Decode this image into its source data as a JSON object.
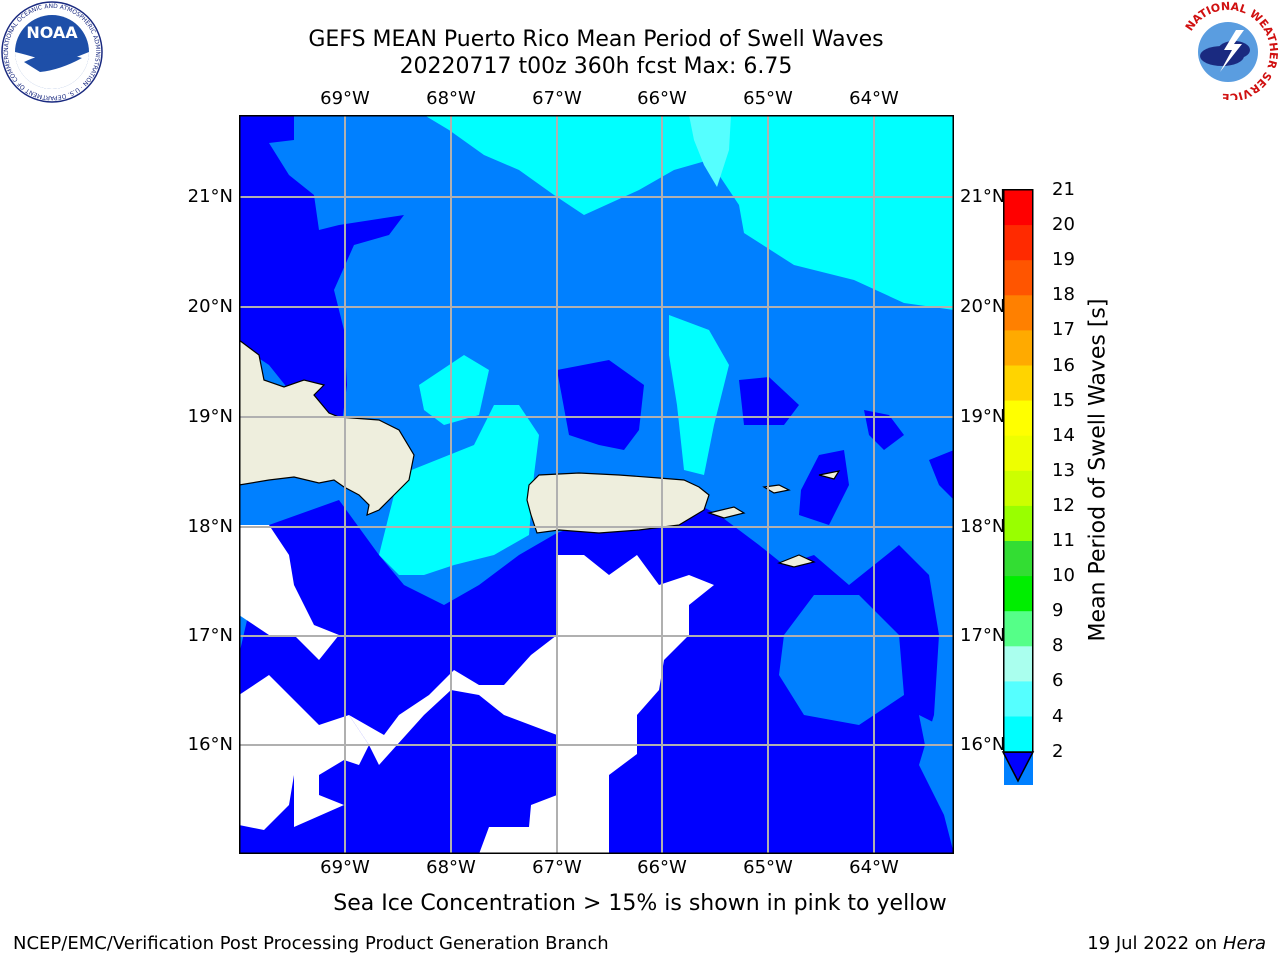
{
  "title": {
    "line1": "GEFS MEAN Puerto Rico Mean Period of Swell Waves",
    "line2": "20220717 t00z 360h fcst   Max: 6.75"
  },
  "logos": {
    "noaa_text": "NOAA",
    "noaa_ring": "NATIONAL OCEANIC AND ATMOSPHERIC ADMINISTRATION · U.S. DEPARTMENT OF COMMERCE",
    "nws_ring": "NATIONAL WEATHER SERVICE"
  },
  "map": {
    "lon_labels": [
      "69°W",
      "68°W",
      "67°W",
      "66°W",
      "65°W",
      "64°W"
    ],
    "lat_labels": [
      "21°N",
      "20°N",
      "19°N",
      "18°N",
      "17°N",
      "16°N"
    ],
    "colors": {
      "land": "#eeeedd",
      "no_data": "#ffffff",
      "band_2_4": "#0000ff",
      "band_4_6": "#0080ff",
      "band_6_8": "#00ffff",
      "band_8_9": "#55ffff",
      "gridline": "#b0b0b0"
    }
  },
  "colorbar": {
    "label": "Mean Period of Swell Waves [s]",
    "ticks": [
      "21",
      "20",
      "19",
      "18",
      "17",
      "16",
      "15",
      "14",
      "13",
      "12",
      "11",
      "10",
      "9",
      "8",
      "6",
      "4",
      "2"
    ],
    "colors": [
      "#ff0000",
      "#ff2a00",
      "#ff5500",
      "#ff8000",
      "#ffaa00",
      "#ffd400",
      "#ffff00",
      "#eeff00",
      "#ccff00",
      "#99ff00",
      "#33dd33",
      "#00ee00",
      "#55ff88",
      "#aaffee",
      "#55ffff",
      "#00ffff",
      "#0080ff"
    ],
    "extend_color": "#0000ff"
  },
  "footer": {
    "note": "Sea Ice Concentration > 15% is shown in pink to yellow",
    "left": "NCEP/EMC/Verification Post Processing Product Generation Branch",
    "right_date": "19 Jul 2022 on ",
    "right_machine": "Hera"
  }
}
